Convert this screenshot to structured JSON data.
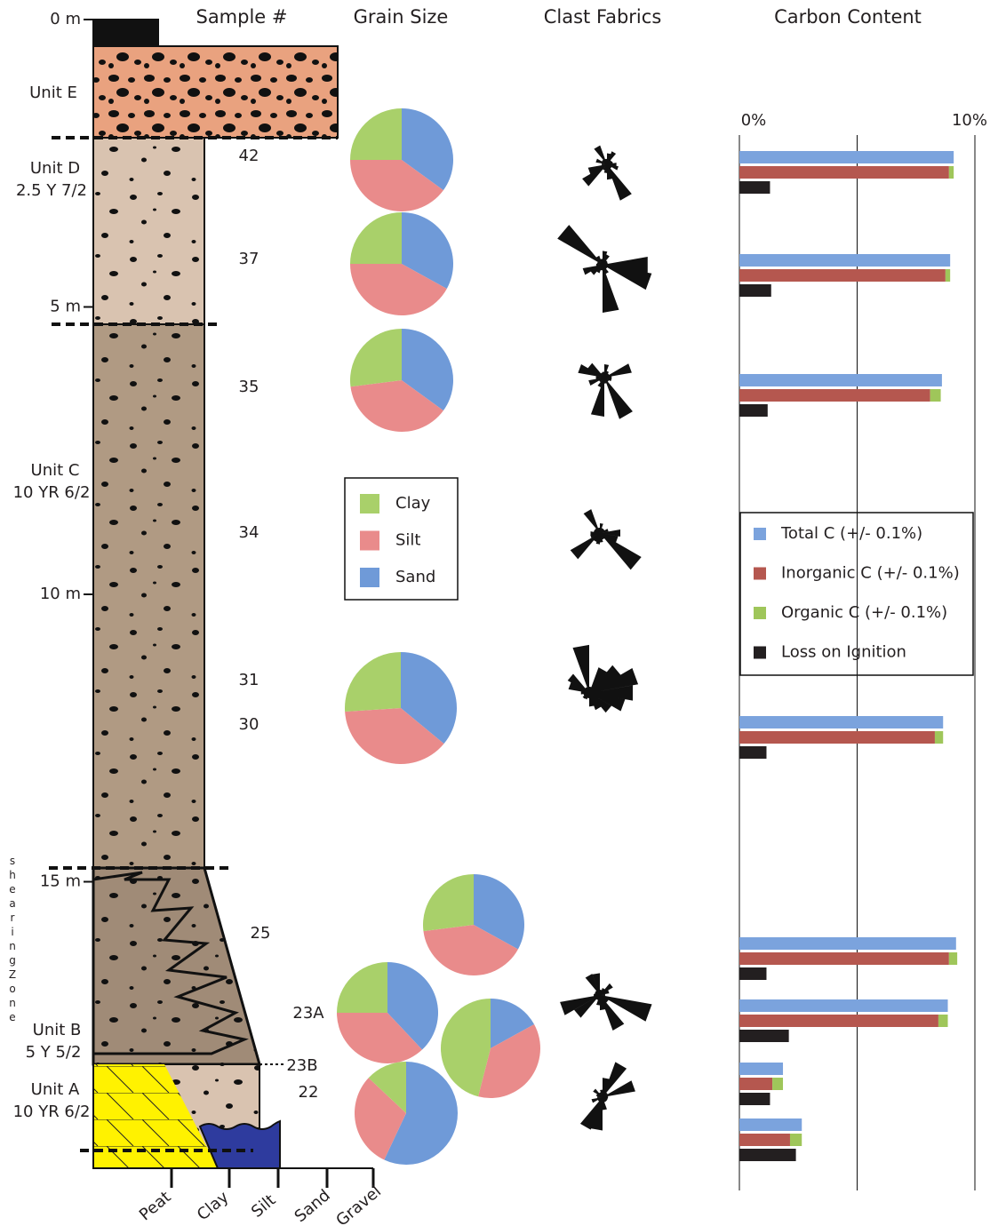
{
  "headers": {
    "sample": "Sample #",
    "grain_size": "Grain Size",
    "clast_fabrics": "Clast Fabrics",
    "carbon_content": "Carbon Content"
  },
  "depth_ticks": [
    {
      "value": 0,
      "label": "0 m"
    },
    {
      "value": 5,
      "label": "5 m"
    },
    {
      "value": 10,
      "label": "10 m"
    },
    {
      "value": 15,
      "label": "15 m"
    }
  ],
  "units": [
    {
      "name": "Unit E"
    },
    {
      "name": "Unit D",
      "color_code": "2.5 Y 7/2"
    },
    {
      "name": "Unit C",
      "color_code": "10 YR 6/2"
    },
    {
      "name": "Unit B",
      "color_code": "5 Y 5/2"
    },
    {
      "name": "Unit A",
      "color_code": "10 YR 6/2"
    }
  ],
  "shearing_zone": "shearingZone",
  "grain_axis": [
    "Peat",
    "Clay",
    "Silt",
    "Sand",
    "Gravel"
  ],
  "grain_legend": [
    {
      "name": "Clay",
      "color": "#a9d06a"
    },
    {
      "name": "Silt",
      "color": "#e98b8b"
    },
    {
      "name": "Sand",
      "color": "#6f9ad8"
    }
  ],
  "carbon_axis": {
    "lim": [
      0,
      10
    ],
    "ticks": [
      {
        "value": 0,
        "label": "0%"
      },
      {
        "value": 5,
        "label": null
      },
      {
        "value": 10,
        "label": "10%"
      }
    ]
  },
  "carbon_legend": [
    {
      "name": "Total C (+/- 0.1%)",
      "color": "#7ba3dd"
    },
    {
      "name": "Inorganic C (+/- 0.1%)",
      "color": "#b5574f"
    },
    {
      "name": "Organic C (+/- 0.1%)",
      "color": "#9fc65a"
    },
    {
      "name": "Loss on Ignition",
      "color": "#231f20"
    }
  ],
  "samples": [
    {
      "label": "42",
      "clay": 25,
      "silt": 40,
      "sand": 35,
      "total_c": 9.1,
      "inorganic_c": 8.9,
      "organic_c": 0.2,
      "loi": 1.3
    },
    {
      "label": "37",
      "clay": 25,
      "silt": 42,
      "sand": 33,
      "total_c": 8.95,
      "inorganic_c": 8.75,
      "organic_c": 0.2,
      "loi": 1.35
    },
    {
      "label": "35",
      "clay": 27,
      "silt": 38,
      "sand": 35,
      "total_c": 8.6,
      "inorganic_c": 8.1,
      "organic_c": 0.45,
      "loi": 1.2
    },
    {
      "label": "34"
    },
    {
      "label": "31"
    },
    {
      "label": "30",
      "clay": 26,
      "silt": 38,
      "sand": 36,
      "total_c": 8.65,
      "inorganic_c": 8.3,
      "organic_c": 0.35,
      "loi": 1.15
    },
    {
      "label": "25",
      "clay": 27,
      "silt": 40,
      "sand": 33,
      "total_c": 9.2,
      "inorganic_c": 8.9,
      "organic_c": 0.35,
      "loi": 1.15
    },
    {
      "label": "23A",
      "clay": 25,
      "silt": 37,
      "sand": 38,
      "total_c": 8.85,
      "inorganic_c": 8.45,
      "organic_c": 0.4,
      "loi": 2.1
    },
    {
      "label": "23B",
      "clay": 46,
      "silt": 37,
      "sand": 17,
      "total_c": 1.85,
      "inorganic_c": 1.4,
      "organic_c": 0.45,
      "loi": 1.3
    },
    {
      "label": "22",
      "clay": 13,
      "silt": 30,
      "sand": 57,
      "total_c": 2.65,
      "inorganic_c": 2.15,
      "organic_c": 0.5,
      "loi": 2.4
    }
  ]
}
